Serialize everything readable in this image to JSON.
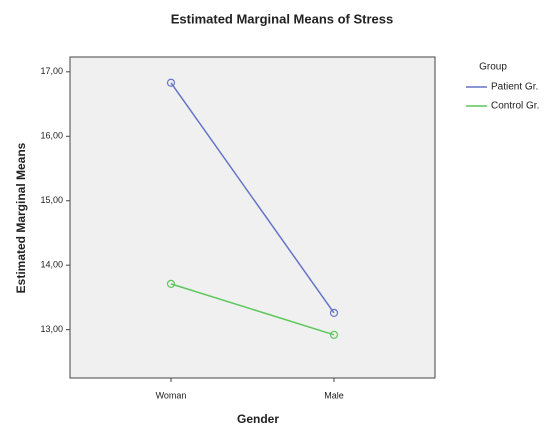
{
  "chart_data": {
    "type": "line",
    "title": "Estimated Marginal Means of Stress",
    "x_label": "Gender",
    "y_label": "Estimated Marginal Means",
    "legend_title": "Group",
    "legend_position": "right",
    "categories": [
      "Woman",
      "Male"
    ],
    "series": [
      {
        "name": "Patient Gr.",
        "color": "#6574c6",
        "values": [
          16.83,
          13.26
        ]
      },
      {
        "name": "Control Gr.",
        "color": "#5cc75a",
        "values": [
          13.71,
          12.92
        ]
      }
    ],
    "ylim": [
      12.25,
      17.23
    ],
    "yticks": [
      {
        "value": 13,
        "label": "13,00"
      },
      {
        "value": 14,
        "label": "14,00"
      },
      {
        "value": 15,
        "label": "15,00"
      },
      {
        "value": 16,
        "label": "16,00"
      },
      {
        "value": 17,
        "label": "17,00"
      }
    ],
    "grid": false
  }
}
